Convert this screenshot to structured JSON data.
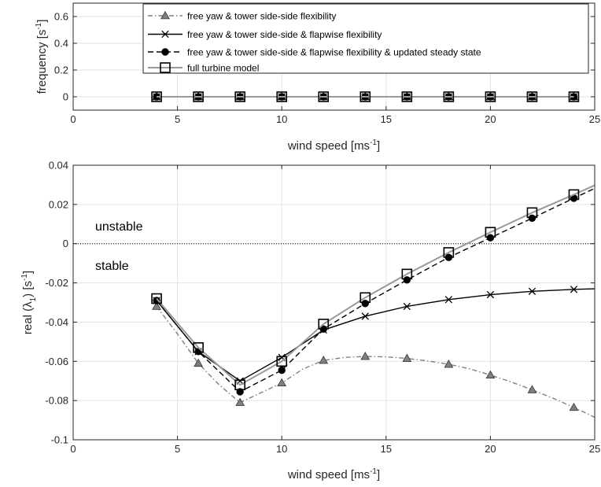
{
  "chart_data": [
    {
      "type": "line",
      "ylabel": "frequency [s",
      "ylabel_sup": "-1",
      "ylabel_tail": "]",
      "xlabel": "wind speed [ms",
      "xlabel_sup": "-1",
      "xlabel_tail": "]",
      "xlim": [
        0,
        25
      ],
      "ylim": [
        -0.1,
        0.7
      ],
      "xticks": [
        0,
        5,
        10,
        15,
        20,
        25
      ],
      "yticks": [
        0,
        0.2,
        0.4,
        0.6
      ],
      "xtick_labels": [
        "0",
        "5",
        "10",
        "15",
        "20",
        "25"
      ],
      "ytick_labels": [
        "0",
        "0.2",
        "0.4",
        "0.6"
      ],
      "grid": true,
      "legend_position": "top-right",
      "x": [
        4,
        6,
        8,
        10,
        12,
        14,
        16,
        18,
        20,
        22,
        24
      ],
      "series": [
        {
          "name": "free yaw & tower side-side flexibility",
          "style": "dashdot",
          "marker": "triangle",
          "color": "#808080",
          "values": [
            0,
            0,
            0,
            0,
            0,
            0,
            0,
            0,
            0,
            0,
            0
          ]
        },
        {
          "name": "free yaw & tower side-side & flapwise flexibility",
          "style": "solid",
          "marker": "x",
          "color": "#000000",
          "values": [
            0,
            0,
            0,
            0,
            0,
            0,
            0,
            0,
            0,
            0,
            0
          ]
        },
        {
          "name": "free yaw & tower side-side & flapwise flexibility & updated steady state",
          "style": "dashed",
          "marker": "circle",
          "color": "#000000",
          "values": [
            0,
            0,
            0,
            0,
            0,
            0,
            0,
            0,
            0,
            0,
            0
          ]
        },
        {
          "name": "full turbine model",
          "style": "solid",
          "marker": "square",
          "color": "#999999",
          "values": [
            0,
            0,
            0,
            0,
            0,
            0,
            0,
            0,
            0,
            0,
            0
          ]
        }
      ]
    },
    {
      "type": "line",
      "ylabel": "real (λ",
      "ylabel_sub": "1",
      "ylabel_mid": ") [s",
      "ylabel_sup": "-1",
      "ylabel_tail": "]",
      "xlabel": "wind speed [ms",
      "xlabel_sup": "-1",
      "xlabel_tail": "]",
      "xlim": [
        0,
        25
      ],
      "ylim": [
        -0.1,
        0.04
      ],
      "xticks": [
        0,
        5,
        10,
        15,
        20,
        25
      ],
      "yticks": [
        -0.1,
        -0.08,
        -0.06,
        -0.04,
        -0.02,
        0,
        0.02,
        0.04
      ],
      "xtick_labels": [
        "0",
        "5",
        "10",
        "15",
        "20",
        "25"
      ],
      "ytick_labels": [
        "-0.1",
        "-0.08",
        "-0.06",
        "-0.04",
        "-0.02",
        "0",
        "0.02",
        "0.04"
      ],
      "grid": true,
      "annotations": [
        "unstable",
        "stable"
      ],
      "zero_line": true,
      "series": [
        {
          "name": "free yaw & tower side-side flexibility",
          "style": "dashdot",
          "marker": "triangle",
          "color": "#808080",
          "x": [
            4,
            6,
            8,
            10,
            12,
            14,
            16,
            18,
            20,
            22,
            24
          ],
          "values": [
            -0.032,
            -0.061,
            -0.081,
            -0.071,
            -0.0595,
            -0.0575,
            -0.0585,
            -0.0615,
            -0.067,
            -0.0745,
            -0.0835
          ],
          "line_x": [
            4,
            5,
            6,
            7,
            8,
            9,
            10,
            11,
            12,
            13,
            14,
            15,
            16,
            17,
            18,
            19,
            20,
            21,
            22,
            23,
            24,
            25
          ],
          "line_values": [
            -0.032,
            -0.046,
            -0.061,
            -0.072,
            -0.081,
            -0.076,
            -0.071,
            -0.064,
            -0.0595,
            -0.058,
            -0.0575,
            -0.0577,
            -0.0585,
            -0.0598,
            -0.0615,
            -0.0638,
            -0.067,
            -0.0705,
            -0.0745,
            -0.0788,
            -0.0835,
            -0.0885
          ]
        },
        {
          "name": "free yaw & tower side-side & flapwise flexibility",
          "style": "solid",
          "marker": "x",
          "color": "#000000",
          "x": [
            4,
            6,
            8,
            10,
            12,
            14,
            16,
            18,
            20,
            22,
            24
          ],
          "values": [
            -0.029,
            -0.055,
            -0.07,
            -0.058,
            -0.044,
            -0.037,
            -0.032,
            -0.0285,
            -0.026,
            -0.0243,
            -0.0233
          ],
          "line_x": [
            4,
            6,
            8,
            10,
            12,
            14,
            16,
            18,
            20,
            22,
            24,
            25
          ],
          "line_values": [
            -0.029,
            -0.055,
            -0.07,
            -0.058,
            -0.044,
            -0.037,
            -0.032,
            -0.0285,
            -0.026,
            -0.0243,
            -0.0233,
            -0.023
          ]
        },
        {
          "name": "free yaw & tower side-side & flapwise flexibility & updated steady state",
          "style": "dashed",
          "marker": "circle",
          "color": "#000000",
          "x": [
            4,
            6,
            8,
            10,
            12,
            14,
            16,
            18,
            20,
            22,
            24
          ],
          "values": [
            -0.029,
            -0.055,
            -0.0755,
            -0.0645,
            -0.0435,
            -0.0305,
            -0.0185,
            -0.007,
            0.003,
            0.013,
            0.0232
          ],
          "line_x": [
            4,
            6,
            8,
            10,
            12,
            14,
            16,
            18,
            20,
            22,
            24,
            25
          ],
          "line_values": [
            -0.029,
            -0.055,
            -0.0755,
            -0.0645,
            -0.0435,
            -0.0305,
            -0.0185,
            -0.007,
            0.003,
            0.013,
            0.0232,
            0.0282
          ]
        },
        {
          "name": "full turbine model",
          "style": "solid",
          "marker": "square",
          "color": "#999999",
          "x": [
            4,
            6,
            8,
            10,
            12,
            14,
            16,
            18,
            20,
            22,
            24
          ],
          "values": [
            -0.028,
            -0.053,
            -0.072,
            -0.06,
            -0.041,
            -0.0275,
            -0.0155,
            -0.0045,
            0.0058,
            0.0158,
            0.025
          ],
          "line_x": [
            4,
            6,
            8,
            10,
            12,
            14,
            16,
            18,
            20,
            22,
            24,
            25
          ],
          "line_values": [
            -0.028,
            -0.053,
            -0.072,
            -0.06,
            -0.041,
            -0.0275,
            -0.0155,
            -0.0045,
            0.0058,
            0.0158,
            0.025,
            0.0298
          ]
        }
      ]
    }
  ]
}
